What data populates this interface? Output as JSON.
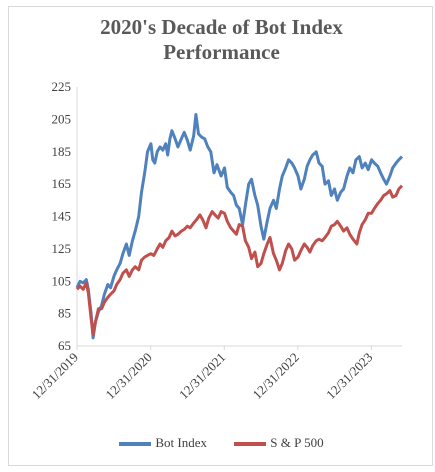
{
  "chart_data": {
    "type": "line",
    "title": "2020's Decade of Bot Index Performance",
    "title_lines": [
      "2020's Decade of Bot Index",
      "Performance"
    ],
    "ylim": [
      65,
      225
    ],
    "yticks": [
      65,
      85,
      105,
      125,
      145,
      165,
      185,
      205,
      225
    ],
    "xlim": [
      "2019-12-31",
      "2024-05-31"
    ],
    "xticks": [
      "12/31/2019",
      "12/31/2020",
      "12/31/2021",
      "12/31/2022",
      "12/31/2023"
    ],
    "legend_position": "bottom",
    "grid": false,
    "series": [
      {
        "name": "Bot Index",
        "color": "#4f81bd",
        "points": [
          [
            "2019-12-31",
            101
          ],
          [
            "2020-01-15",
            105
          ],
          [
            "2020-01-31",
            104
          ],
          [
            "2020-02-15",
            106
          ],
          [
            "2020-02-25",
            100
          ],
          [
            "2020-03-10",
            85
          ],
          [
            "2020-03-20",
            70
          ],
          [
            "2020-04-01",
            80
          ],
          [
            "2020-04-15",
            86
          ],
          [
            "2020-05-01",
            90
          ],
          [
            "2020-05-15",
            97
          ],
          [
            "2020-06-01",
            103
          ],
          [
            "2020-06-15",
            101
          ],
          [
            "2020-07-01",
            108
          ],
          [
            "2020-07-15",
            112
          ],
          [
            "2020-08-01",
            116
          ],
          [
            "2020-08-15",
            122
          ],
          [
            "2020-09-01",
            128
          ],
          [
            "2020-09-15",
            121
          ],
          [
            "2020-10-01",
            130
          ],
          [
            "2020-10-15",
            136
          ],
          [
            "2020-11-01",
            145
          ],
          [
            "2020-11-15",
            160
          ],
          [
            "2020-12-01",
            172
          ],
          [
            "2020-12-15",
            185
          ],
          [
            "2021-01-01",
            190
          ],
          [
            "2021-01-10",
            180
          ],
          [
            "2021-01-20",
            178
          ],
          [
            "2021-02-01",
            185
          ],
          [
            "2021-02-15",
            188
          ],
          [
            "2021-03-01",
            186
          ],
          [
            "2021-03-15",
            190
          ],
          [
            "2021-03-25",
            183
          ],
          [
            "2021-04-05",
            193
          ],
          [
            "2021-04-15",
            198
          ],
          [
            "2021-05-01",
            193
          ],
          [
            "2021-05-15",
            188
          ],
          [
            "2021-06-01",
            193
          ],
          [
            "2021-06-15",
            197
          ],
          [
            "2021-07-01",
            192
          ],
          [
            "2021-07-15",
            186
          ],
          [
            "2021-08-01",
            195
          ],
          [
            "2021-08-12",
            208
          ],
          [
            "2021-08-25",
            196
          ],
          [
            "2021-09-10",
            194
          ],
          [
            "2021-09-25",
            193
          ],
          [
            "2021-10-10",
            188
          ],
          [
            "2021-10-25",
            185
          ],
          [
            "2021-11-10",
            172
          ],
          [
            "2021-11-25",
            177
          ],
          [
            "2021-12-15",
            170
          ],
          [
            "2022-01-01",
            175
          ],
          [
            "2022-01-15",
            163
          ],
          [
            "2022-02-01",
            160
          ],
          [
            "2022-02-15",
            158
          ],
          [
            "2022-03-01",
            152
          ],
          [
            "2022-03-15",
            150
          ],
          [
            "2022-04-01",
            140
          ],
          [
            "2022-04-15",
            152
          ],
          [
            "2022-05-01",
            165
          ],
          [
            "2022-05-15",
            168
          ],
          [
            "2022-06-01",
            158
          ],
          [
            "2022-06-15",
            152
          ],
          [
            "2022-07-01",
            139
          ],
          [
            "2022-07-15",
            131
          ],
          [
            "2022-08-01",
            142
          ],
          [
            "2022-08-15",
            150
          ],
          [
            "2022-09-01",
            155
          ],
          [
            "2022-09-15",
            150
          ],
          [
            "2022-10-01",
            162
          ],
          [
            "2022-10-15",
            170
          ],
          [
            "2022-11-01",
            175
          ],
          [
            "2022-11-15",
            180
          ],
          [
            "2022-12-01",
            178
          ],
          [
            "2022-12-15",
            175
          ],
          [
            "2023-01-01",
            170
          ],
          [
            "2023-01-15",
            162
          ],
          [
            "2023-02-01",
            168
          ],
          [
            "2023-02-15",
            176
          ],
          [
            "2023-03-01",
            180
          ],
          [
            "2023-03-15",
            183
          ],
          [
            "2023-04-01",
            185
          ],
          [
            "2023-04-15",
            178
          ],
          [
            "2023-05-01",
            176
          ],
          [
            "2023-05-15",
            165
          ],
          [
            "2023-06-01",
            167
          ],
          [
            "2023-06-15",
            158
          ],
          [
            "2023-07-01",
            162
          ],
          [
            "2023-07-15",
            155
          ],
          [
            "2023-08-01",
            160
          ],
          [
            "2023-08-15",
            162
          ],
          [
            "2023-09-01",
            170
          ],
          [
            "2023-09-15",
            175
          ],
          [
            "2023-10-01",
            172
          ],
          [
            "2023-10-15",
            180
          ],
          [
            "2023-11-01",
            182
          ],
          [
            "2023-11-15",
            175
          ],
          [
            "2023-12-01",
            178
          ],
          [
            "2023-12-15",
            174
          ],
          [
            "2024-01-01",
            180
          ],
          [
            "2024-01-15",
            178
          ],
          [
            "2024-02-01",
            176
          ],
          [
            "2024-02-15",
            172
          ],
          [
            "2024-03-01",
            168
          ],
          [
            "2024-03-15",
            165
          ],
          [
            "2024-04-01",
            170
          ],
          [
            "2024-04-15",
            175
          ],
          [
            "2024-05-01",
            178
          ],
          [
            "2024-05-15",
            180
          ],
          [
            "2024-05-31",
            182
          ]
        ]
      },
      {
        "name": "S & P 500",
        "color": "#c0504d",
        "points": [
          [
            "2019-12-31",
            100
          ],
          [
            "2020-01-15",
            102
          ],
          [
            "2020-01-31",
            100
          ],
          [
            "2020-02-15",
            104
          ],
          [
            "2020-02-25",
            98
          ],
          [
            "2020-03-10",
            82
          ],
          [
            "2020-03-20",
            72
          ],
          [
            "2020-04-01",
            80
          ],
          [
            "2020-04-15",
            88
          ],
          [
            "2020-05-01",
            88
          ],
          [
            "2020-05-15",
            92
          ],
          [
            "2020-06-01",
            95
          ],
          [
            "2020-06-15",
            97
          ],
          [
            "2020-07-01",
            99
          ],
          [
            "2020-07-15",
            103
          ],
          [
            "2020-08-01",
            106
          ],
          [
            "2020-08-15",
            110
          ],
          [
            "2020-09-01",
            112
          ],
          [
            "2020-09-15",
            108
          ],
          [
            "2020-10-01",
            112
          ],
          [
            "2020-10-15",
            114
          ],
          [
            "2020-11-01",
            112
          ],
          [
            "2020-11-15",
            118
          ],
          [
            "2020-12-01",
            120
          ],
          [
            "2020-12-15",
            121
          ],
          [
            "2021-01-01",
            122
          ],
          [
            "2021-01-15",
            121
          ],
          [
            "2021-02-01",
            125
          ],
          [
            "2021-02-15",
            128
          ],
          [
            "2021-03-01",
            126
          ],
          [
            "2021-03-15",
            130
          ],
          [
            "2021-04-01",
            132
          ],
          [
            "2021-04-15",
            136
          ],
          [
            "2021-05-01",
            133
          ],
          [
            "2021-05-15",
            134
          ],
          [
            "2021-06-01",
            136
          ],
          [
            "2021-06-15",
            137
          ],
          [
            "2021-07-01",
            139
          ],
          [
            "2021-07-15",
            138
          ],
          [
            "2021-08-01",
            141
          ],
          [
            "2021-08-15",
            143
          ],
          [
            "2021-09-01",
            146
          ],
          [
            "2021-09-15",
            143
          ],
          [
            "2021-10-01",
            138
          ],
          [
            "2021-10-15",
            144
          ],
          [
            "2021-11-01",
            148
          ],
          [
            "2021-11-15",
            146
          ],
          [
            "2021-12-01",
            144
          ],
          [
            "2021-12-15",
            148
          ],
          [
            "2022-01-01",
            147
          ],
          [
            "2022-01-15",
            142
          ],
          [
            "2022-02-01",
            138
          ],
          [
            "2022-02-15",
            136
          ],
          [
            "2022-03-01",
            134
          ],
          [
            "2022-03-15",
            140
          ],
          [
            "2022-04-01",
            139
          ],
          [
            "2022-04-15",
            130
          ],
          [
            "2022-05-01",
            126
          ],
          [
            "2022-05-15",
            119
          ],
          [
            "2022-06-01",
            123
          ],
          [
            "2022-06-15",
            114
          ],
          [
            "2022-07-01",
            116
          ],
          [
            "2022-07-15",
            122
          ],
          [
            "2022-08-01",
            128
          ],
          [
            "2022-08-15",
            132
          ],
          [
            "2022-09-01",
            122
          ],
          [
            "2022-09-15",
            118
          ],
          [
            "2022-10-01",
            112
          ],
          [
            "2022-10-15",
            116
          ],
          [
            "2022-11-01",
            124
          ],
          [
            "2022-11-15",
            128
          ],
          [
            "2022-12-01",
            125
          ],
          [
            "2022-12-15",
            118
          ],
          [
            "2023-01-01",
            120
          ],
          [
            "2023-01-15",
            124
          ],
          [
            "2023-02-01",
            128
          ],
          [
            "2023-02-15",
            126
          ],
          [
            "2023-03-01",
            123
          ],
          [
            "2023-03-15",
            127
          ],
          [
            "2023-04-01",
            130
          ],
          [
            "2023-04-15",
            131
          ],
          [
            "2023-05-01",
            130
          ],
          [
            "2023-05-15",
            132
          ],
          [
            "2023-06-01",
            135
          ],
          [
            "2023-06-15",
            139
          ],
          [
            "2023-07-01",
            140
          ],
          [
            "2023-07-15",
            142
          ],
          [
            "2023-08-01",
            139
          ],
          [
            "2023-08-15",
            136
          ],
          [
            "2023-09-01",
            138
          ],
          [
            "2023-09-15",
            134
          ],
          [
            "2023-10-01",
            131
          ],
          [
            "2023-10-20",
            128
          ],
          [
            "2023-11-01",
            135
          ],
          [
            "2023-11-15",
            140
          ],
          [
            "2023-12-01",
            143
          ],
          [
            "2023-12-15",
            147
          ],
          [
            "2024-01-01",
            147
          ],
          [
            "2024-01-15",
            150
          ],
          [
            "2024-02-01",
            153
          ],
          [
            "2024-02-15",
            155
          ],
          [
            "2024-03-01",
            158
          ],
          [
            "2024-03-15",
            159
          ],
          [
            "2024-04-01",
            161
          ],
          [
            "2024-04-15",
            157
          ],
          [
            "2024-05-01",
            158
          ],
          [
            "2024-05-15",
            162
          ],
          [
            "2024-05-31",
            164
          ]
        ]
      }
    ]
  }
}
